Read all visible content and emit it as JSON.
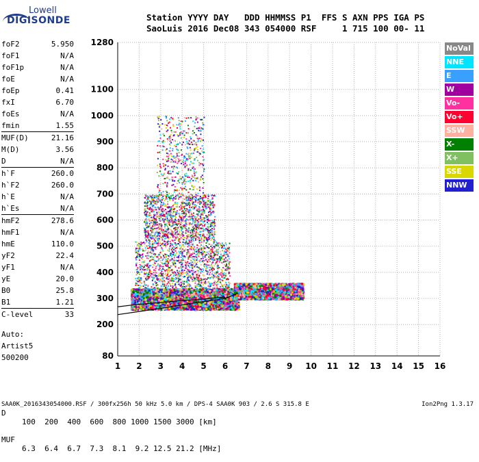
{
  "logo": {
    "line1": "Lowell",
    "line2": "DIGISONDE"
  },
  "header": {
    "line1": "Station YYYY DAY   DDD HHMMSS P1  FFS S AXN PPS IGA PS",
    "line2": "SaoLuis 2016 Dec08 343 054000 RSF     1 715 100 00- 11"
  },
  "params": [
    {
      "k": "foF2",
      "v": "5.950"
    },
    {
      "k": "foF1",
      "v": "N/A"
    },
    {
      "k": "foF1p",
      "v": "N/A"
    },
    {
      "k": "foE",
      "v": "N/A"
    },
    {
      "k": "foEp",
      "v": "0.41"
    },
    {
      "k": "fxI",
      "v": "6.70"
    },
    {
      "k": "foEs",
      "v": "N/A"
    },
    {
      "k": "fmin",
      "v": "1.55"
    },
    {
      "k": "MUF(D)",
      "v": "21.16"
    },
    {
      "k": "M(D)",
      "v": "3.56"
    },
    {
      "k": "D",
      "v": "N/A"
    },
    {
      "k": "h`F",
      "v": "260.0"
    },
    {
      "k": "h`F2",
      "v": "260.0"
    },
    {
      "k": "h`E",
      "v": "N/A"
    },
    {
      "k": "h`Es",
      "v": "N/A"
    },
    {
      "k": "hmF2",
      "v": "278.6"
    },
    {
      "k": "hmF1",
      "v": "N/A"
    },
    {
      "k": "hmE",
      "v": "110.0"
    },
    {
      "k": "yF2",
      "v": "22.4"
    },
    {
      "k": "yF1",
      "v": "N/A"
    },
    {
      "k": "yE",
      "v": "20.0"
    },
    {
      "k": "B0",
      "v": "25.8"
    },
    {
      "k": "B1",
      "v": "1.21"
    },
    {
      "k": "C-level",
      "v": "33"
    }
  ],
  "auto": {
    "line1": "Auto:",
    "line2": "Artist5",
    "line3": "500200"
  },
  "footer": {
    "d_label": "D",
    "d_values": "100  200  400  600  800 1000 1500 3000 [km]",
    "muf_label": "MUF",
    "muf_values": "6.3  6.4  6.7  7.3  8.1  9.2 12.5 21.2 [MHz]",
    "file_info": "SAA0K_2016343054000.RSF / 300fx256h 50 kHz 5.0 km / DPS-4 SAA0K 903 / 2.6 S 315.8 E",
    "version": "Ion2Png 1.3.17"
  },
  "legend": [
    {
      "label": "NoVal",
      "color": "#888888"
    },
    {
      "label": "NNE",
      "color": "#00e5ff"
    },
    {
      "label": "E",
      "color": "#3aa0ff"
    },
    {
      "label": "W",
      "color": "#a000a0"
    },
    {
      "label": "Vo-",
      "color": "#ff30a0"
    },
    {
      "label": "Vo+",
      "color": "#ff0030"
    },
    {
      "label": "SSW",
      "color": "#ffb0a0"
    },
    {
      "label": "X-",
      "color": "#008000"
    },
    {
      "label": "X+",
      "color": "#80c060"
    },
    {
      "label": "SSE",
      "color": "#d8d800"
    },
    {
      "label": "NNW",
      "color": "#2020d0"
    }
  ],
  "chart_data": {
    "type": "scatter",
    "xlabel": "",
    "ylabel": "",
    "xlim": [
      1,
      16
    ],
    "ylim": [
      80,
      1280
    ],
    "x_ticks": [
      1,
      2,
      3,
      4,
      5,
      6,
      7,
      8,
      9,
      10,
      11,
      12,
      13,
      14,
      15,
      16
    ],
    "y_ticks": [
      80,
      200,
      300,
      400,
      500,
      600,
      700,
      800,
      900,
      1000,
      1100,
      1280
    ],
    "grid": true,
    "legend_position": "right",
    "trace_lines": [
      {
        "name": "",
        "x": [
          1.0,
          2.0,
          3.0,
          4.0,
          5.0,
          6.0,
          6.6
        ],
        "y": [
          238,
          250,
          262,
          275,
          288,
          300,
          320
        ]
      },
      {
        "name": "",
        "x": [
          1.0,
          2.0,
          3.0,
          4.0,
          5.0,
          6.0
        ],
        "y": [
          268,
          278,
          284,
          292,
          298,
          305
        ]
      }
    ],
    "regions": [
      {
        "x": [
          1.6,
          6.6
        ],
        "y": [
          260,
          340
        ],
        "density": "high"
      },
      {
        "x": [
          6.4,
          9.6
        ],
        "y": [
          300,
          360
        ],
        "density": "high"
      },
      {
        "x": [
          1.8,
          6.2
        ],
        "y": [
          340,
          520
        ],
        "density": "medium"
      },
      {
        "x": [
          2.2,
          5.5
        ],
        "y": [
          520,
          700
        ],
        "density": "medium"
      },
      {
        "x": [
          2.8,
          5.0
        ],
        "y": [
          700,
          1000
        ],
        "density": "low"
      }
    ]
  }
}
